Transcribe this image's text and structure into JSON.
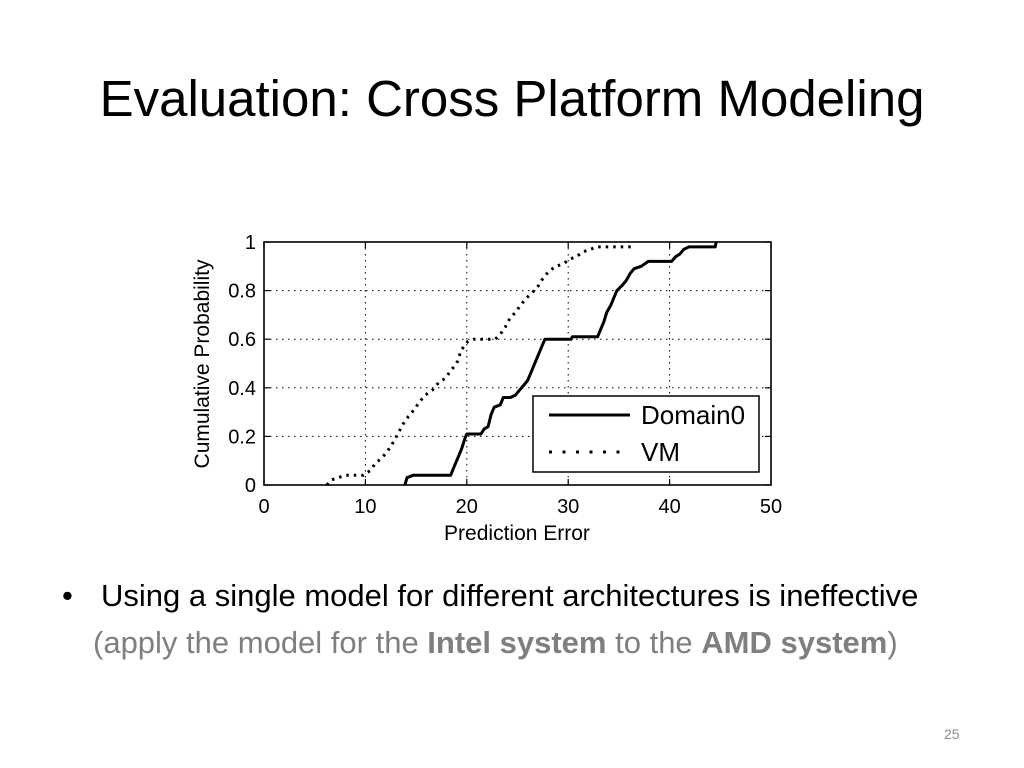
{
  "slide": {
    "title": "Evaluation: Cross Platform Modeling",
    "bullet": {
      "marker": "•",
      "text": "Using a single model for different architectures is ineffective",
      "note": [
        "(apply the model for the ",
        "Intel system",
        " to the ",
        "AMD system",
        ")"
      ]
    },
    "page_number": "25"
  },
  "colors": {
    "background": "#ffffff",
    "title_text": "#000000",
    "body_text": "#000000",
    "note_text": "#7f7f7f",
    "page_number_text": "#898989"
  },
  "chart_data": {
    "type": "line",
    "xlabel": "Prediction Error",
    "ylabel": "Cumulative Probability",
    "xlim": [
      0,
      50
    ],
    "ylim": [
      0,
      1
    ],
    "x_ticks": [
      0,
      10,
      20,
      30,
      40,
      50
    ],
    "x_tick_labels": [
      "0",
      "10",
      "20",
      "30",
      "40",
      "50"
    ],
    "y_ticks": [
      0,
      0.2,
      0.4,
      0.6,
      0.8,
      1
    ],
    "y_tick_labels": [
      "0",
      "0.2",
      "0.4",
      "0.6",
      "0.8",
      "1"
    ],
    "grid": true,
    "legend": "bottom-right",
    "series": [
      {
        "name": "Domain0",
        "line_style": "solid",
        "color": "#000000",
        "points": [
          [
            13.9,
            0.0
          ],
          [
            14.1,
            0.03
          ],
          [
            14.7,
            0.04
          ],
          [
            18.4,
            0.04
          ],
          [
            18.8,
            0.08
          ],
          [
            19.1,
            0.11
          ],
          [
            19.5,
            0.15
          ],
          [
            19.8,
            0.19
          ],
          [
            20.0,
            0.21
          ],
          [
            21.4,
            0.21
          ],
          [
            21.7,
            0.23
          ],
          [
            22.1,
            0.24
          ],
          [
            22.4,
            0.29
          ],
          [
            22.7,
            0.32
          ],
          [
            23.3,
            0.33
          ],
          [
            23.6,
            0.36
          ],
          [
            24.3,
            0.36
          ],
          [
            24.8,
            0.37
          ],
          [
            25.2,
            0.39
          ],
          [
            25.6,
            0.41
          ],
          [
            26.0,
            0.43
          ],
          [
            26.3,
            0.46
          ],
          [
            26.6,
            0.49
          ],
          [
            26.9,
            0.52
          ],
          [
            27.3,
            0.56
          ],
          [
            27.7,
            0.6
          ],
          [
            30.3,
            0.6
          ],
          [
            30.4,
            0.61
          ],
          [
            32.9,
            0.61
          ],
          [
            33.2,
            0.64
          ],
          [
            33.5,
            0.67
          ],
          [
            33.8,
            0.71
          ],
          [
            34.2,
            0.74
          ],
          [
            34.5,
            0.77
          ],
          [
            34.8,
            0.8
          ],
          [
            35.3,
            0.82
          ],
          [
            35.7,
            0.84
          ],
          [
            36.1,
            0.87
          ],
          [
            36.5,
            0.89
          ],
          [
            37.2,
            0.9
          ],
          [
            37.9,
            0.92
          ],
          [
            40.2,
            0.92
          ],
          [
            40.6,
            0.94
          ],
          [
            41.0,
            0.95
          ],
          [
            41.4,
            0.97
          ],
          [
            41.9,
            0.98
          ],
          [
            44.5,
            0.98
          ],
          [
            44.6,
            1.0
          ]
        ]
      },
      {
        "name": "VM",
        "line_style": "dotted",
        "color": "#000000",
        "points": [
          [
            6.2,
            0.0
          ],
          [
            6.6,
            0.02
          ],
          [
            8.0,
            0.04
          ],
          [
            9.8,
            0.04
          ],
          [
            10.5,
            0.06
          ],
          [
            11.0,
            0.09
          ],
          [
            11.6,
            0.11
          ],
          [
            12.2,
            0.14
          ],
          [
            12.8,
            0.18
          ],
          [
            13.2,
            0.21
          ],
          [
            13.7,
            0.25
          ],
          [
            14.2,
            0.28
          ],
          [
            14.8,
            0.31
          ],
          [
            15.3,
            0.34
          ],
          [
            15.9,
            0.37
          ],
          [
            16.6,
            0.39
          ],
          [
            17.2,
            0.42
          ],
          [
            17.9,
            0.44
          ],
          [
            18.4,
            0.47
          ],
          [
            18.8,
            0.49
          ],
          [
            19.1,
            0.51
          ],
          [
            19.4,
            0.55
          ],
          [
            19.7,
            0.57
          ],
          [
            20.1,
            0.59
          ],
          [
            20.7,
            0.6
          ],
          [
            22.8,
            0.6
          ],
          [
            23.3,
            0.62
          ],
          [
            23.8,
            0.65
          ],
          [
            24.3,
            0.69
          ],
          [
            24.8,
            0.71
          ],
          [
            25.3,
            0.74
          ],
          [
            25.9,
            0.77
          ],
          [
            26.4,
            0.79
          ],
          [
            26.9,
            0.81
          ],
          [
            27.5,
            0.85
          ],
          [
            28.1,
            0.88
          ],
          [
            28.8,
            0.9
          ],
          [
            29.5,
            0.91
          ],
          [
            30.2,
            0.93
          ],
          [
            30.8,
            0.94
          ],
          [
            31.5,
            0.96
          ],
          [
            32.2,
            0.97
          ],
          [
            32.8,
            0.98
          ],
          [
            36.4,
            0.98
          ]
        ]
      }
    ]
  }
}
